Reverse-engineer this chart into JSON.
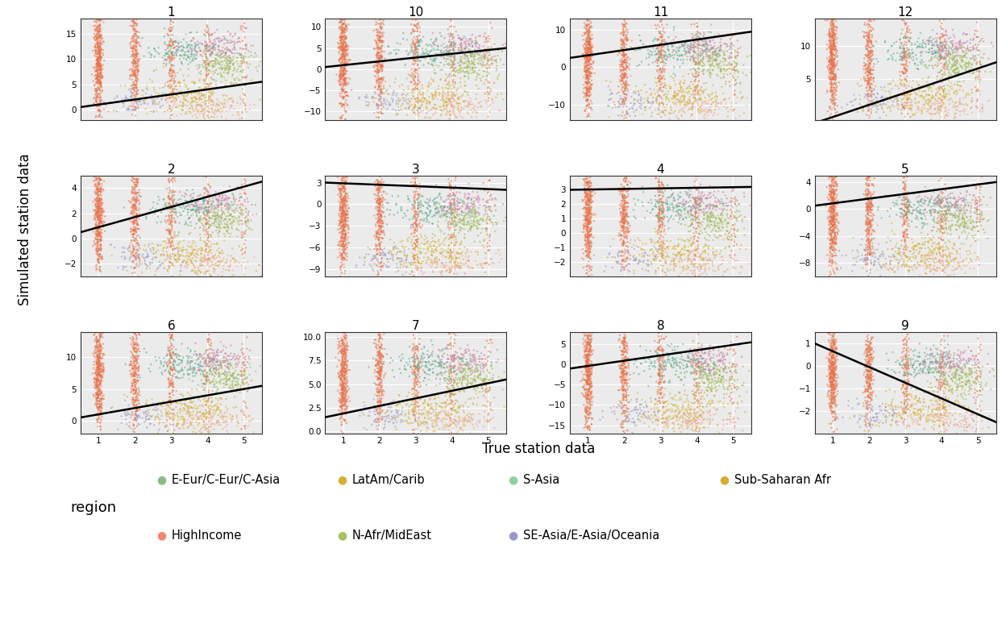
{
  "panels": [
    {
      "id": "1",
      "row": 0,
      "col": 0,
      "xlim": [
        0.5,
        5.5
      ],
      "ylim": [
        -2,
        18
      ],
      "yticks": [
        0,
        5,
        10,
        15
      ],
      "line": [
        0.5,
        5.5,
        0.5,
        5.5
      ]
    },
    {
      "id": "10",
      "row": 0,
      "col": 1,
      "xlim": [
        0.5,
        5.5
      ],
      "ylim": [
        -12,
        12
      ],
      "yticks": [
        -10,
        -5,
        0,
        5,
        10
      ],
      "line": [
        0.5,
        5.5,
        0.5,
        5.0
      ]
    },
    {
      "id": "11",
      "row": 0,
      "col": 2,
      "xlim": [
        0.5,
        5.5
      ],
      "ylim": [
        -14,
        13
      ],
      "yticks": [
        -10,
        0,
        10
      ],
      "line": [
        0.5,
        5.5,
        2.5,
        9.5
      ]
    },
    {
      "id": "12",
      "row": 0,
      "col": 3,
      "xlim": [
        0.5,
        5.5
      ],
      "ylim": [
        -1,
        14
      ],
      "yticks": [
        5,
        10
      ],
      "line": [
        0.5,
        5.5,
        -1.5,
        7.5
      ]
    },
    {
      "id": "2",
      "row": 1,
      "col": 0,
      "xlim": [
        0.5,
        5.5
      ],
      "ylim": [
        -3,
        5
      ],
      "yticks": [
        -2,
        0,
        2,
        4
      ],
      "line": [
        0.5,
        5.5,
        0.5,
        4.5
      ]
    },
    {
      "id": "3",
      "row": 1,
      "col": 1,
      "xlim": [
        0.5,
        5.5
      ],
      "ylim": [
        -10,
        4
      ],
      "yticks": [
        -9,
        -6,
        -3,
        0,
        3
      ],
      "line": [
        0.5,
        5.5,
        3.0,
        2.0
      ]
    },
    {
      "id": "4",
      "row": 1,
      "col": 2,
      "xlim": [
        0.5,
        5.5
      ],
      "ylim": [
        -3,
        4
      ],
      "yticks": [
        -2,
        -1,
        0,
        1,
        2,
        3
      ],
      "line": [
        0.5,
        5.5,
        3.0,
        3.2
      ]
    },
    {
      "id": "5",
      "row": 1,
      "col": 3,
      "xlim": [
        0.5,
        5.5
      ],
      "ylim": [
        -10,
        5
      ],
      "yticks": [
        -8,
        -4,
        0,
        4
      ],
      "line": [
        0.5,
        5.5,
        0.5,
        4.0
      ]
    },
    {
      "id": "6",
      "row": 2,
      "col": 0,
      "xlim": [
        0.5,
        5.5
      ],
      "ylim": [
        -2,
        14
      ],
      "yticks": [
        0,
        5,
        10
      ],
      "line": [
        0.5,
        5.5,
        0.5,
        5.5
      ]
    },
    {
      "id": "7",
      "row": 2,
      "col": 1,
      "xlim": [
        0.5,
        5.5
      ],
      "ylim": [
        -0.2,
        10.5
      ],
      "yticks": [
        0.0,
        2.5,
        5.0,
        7.5,
        10.0
      ],
      "line": [
        0.5,
        5.5,
        1.5,
        5.5
      ]
    },
    {
      "id": "8",
      "row": 2,
      "col": 2,
      "xlim": [
        0.5,
        5.5
      ],
      "ylim": [
        -17,
        8
      ],
      "yticks": [
        -15,
        -10,
        -5,
        0,
        5
      ],
      "line": [
        0.5,
        5.5,
        -1.0,
        5.5
      ]
    },
    {
      "id": "9",
      "row": 2,
      "col": 3,
      "xlim": [
        0.5,
        5.5
      ],
      "ylim": [
        -3,
        1.5
      ],
      "yticks": [
        -2,
        -1,
        0,
        1
      ],
      "line": [
        0.5,
        5.5,
        1.0,
        -2.5
      ]
    }
  ],
  "colors": {
    "orange": "#E8724A",
    "yellow": "#D4B030",
    "teal": "#5AAA88",
    "pink": "#D078A8",
    "lavender": "#9898CC",
    "lime": "#A0B850",
    "salmon": "#F0A898"
  },
  "legend": [
    {
      "label": "E-Eur/C-Eur/C-Asia",
      "color": "#88BB88",
      "row": 0,
      "col": 0
    },
    {
      "label": "HighIncome",
      "color": "#F08870",
      "row": 1,
      "col": 0
    },
    {
      "label": "LatAm/Carib",
      "color": "#D4B030",
      "row": 0,
      "col": 1
    },
    {
      "label": "N-Afr/MidEast",
      "color": "#A8C060",
      "row": 1,
      "col": 1
    },
    {
      "label": "S-Asia",
      "color": "#90D0A0",
      "row": 0,
      "col": 2
    },
    {
      "label": "SE-Asia/E-Asia/Oceania",
      "color": "#9898CC",
      "row": 1,
      "col": 2
    },
    {
      "label": "Sub-Saharan Afr",
      "color": "#D4B030",
      "row": 0,
      "col": 3
    }
  ],
  "xticks": [
    1,
    2,
    3,
    4,
    5
  ],
  "panel_bg": "#EBEBEB",
  "grid_color": "#FFFFFF"
}
